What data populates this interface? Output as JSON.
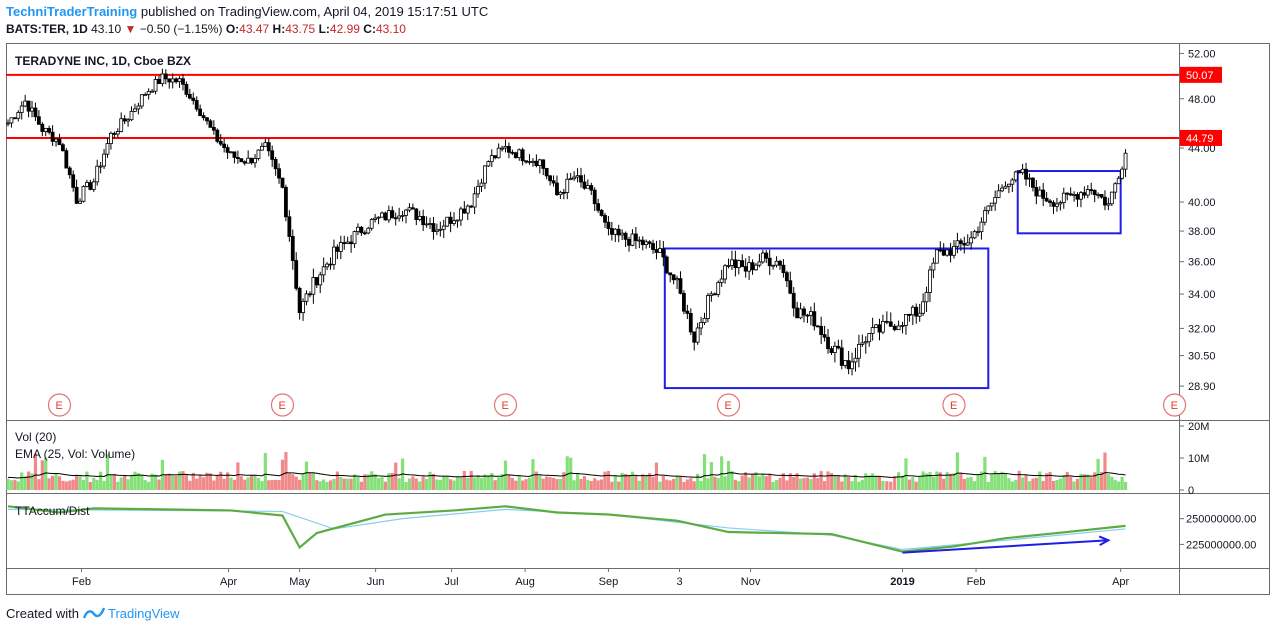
{
  "header": {
    "author": "TechniTraderTraining",
    "published": "published on TradingView.com, April 04, 2019 15:17:51 UTC",
    "symbol": "BATS:TER, 1D",
    "last": "43.10",
    "arrow": "▼",
    "change": "−0.50 (−1.15%)",
    "o_label": "O:",
    "o": "43.47",
    "h_label": "H:",
    "h": "43.75",
    "l_label": "L:",
    "l": "42.99",
    "c_label": "C:",
    "c": "43.10"
  },
  "footer": {
    "created": "Created with",
    "tv": "TradingView"
  },
  "chart_data": [
    {
      "type": "candlestick",
      "title": "TERADYNE INC, 1D, Cboe BZX",
      "y_ticks": [
        "52.00",
        "48.00",
        "44.00",
        "40.00",
        "38.00",
        "36.00",
        "34.00",
        "32.00",
        "30.50",
        "28.90"
      ],
      "ylim": [
        28.3,
        52.5
      ],
      "scale": "log",
      "horizontal_lines": [
        {
          "value": 50.07,
          "label": "50.07",
          "color": "#ff0000"
        },
        {
          "value": 44.79,
          "label": "44.79",
          "color": "#ff0000"
        }
      ],
      "boxes": [
        {
          "from": "2018-09-27",
          "to": "2019-02-06",
          "low": 28.8,
          "high": 36.85,
          "color": "#1e1ee6"
        },
        {
          "from": "2019-02-18",
          "to": "2019-04-01",
          "low": 37.85,
          "high": 42.25,
          "color": "#1e1ee6"
        }
      ],
      "earnings_markers": [
        "E",
        "E",
        "E",
        "E",
        "E",
        "E"
      ],
      "x_ticks": [
        "Feb",
        "Apr",
        "May",
        "Jun",
        "Jul",
        "Aug",
        "Sep",
        "3",
        "Nov",
        "2019",
        "Feb",
        "Apr"
      ],
      "series": [
        {
          "dates": [
            "2018-01-02",
            "2018-01-09",
            "2018-01-16",
            "2018-01-23",
            "2018-01-30",
            "2018-02-06",
            "2018-02-13",
            "2018-02-20",
            "2018-02-27",
            "2018-03-06",
            "2018-03-13",
            "2018-03-20",
            "2018-03-27",
            "2018-04-03",
            "2018-04-10",
            "2018-04-17",
            "2018-04-24",
            "2018-05-01",
            "2018-05-08",
            "2018-05-15",
            "2018-05-22",
            "2018-05-29",
            "2018-06-05",
            "2018-06-12",
            "2018-06-19",
            "2018-06-26",
            "2018-07-03",
            "2018-07-10",
            "2018-07-17",
            "2018-07-24",
            "2018-07-31",
            "2018-08-07",
            "2018-08-14",
            "2018-08-21",
            "2018-08-28",
            "2018-09-04",
            "2018-09-11",
            "2018-09-18",
            "2018-09-25",
            "2018-10-02",
            "2018-10-09",
            "2018-10-16",
            "2018-10-23",
            "2018-10-30",
            "2018-11-06",
            "2018-11-13",
            "2018-11-20",
            "2018-11-27",
            "2018-12-04",
            "2018-12-11",
            "2018-12-18",
            "2018-12-25",
            "2019-01-02",
            "2019-01-09",
            "2019-01-16",
            "2019-01-23",
            "2019-01-30",
            "2019-02-06",
            "2019-02-13",
            "2019-02-20",
            "2019-02-27",
            "2019-03-06",
            "2019-03-13",
            "2019-03-20",
            "2019-03-27",
            "2019-04-03"
          ],
          "close": [
            46.0,
            47.8,
            45.5,
            44.5,
            40.2,
            41.5,
            45.0,
            46.5,
            48.5,
            49.8,
            49.5,
            47.5,
            45.0,
            43.4,
            43.0,
            44.0,
            41.0,
            33.0,
            35.0,
            36.5,
            37.5,
            38.5,
            39.0,
            39.5,
            39.0,
            38.2,
            39.0,
            40.0,
            43.0,
            44.0,
            43.4,
            43.0,
            40.5,
            41.8,
            40.5,
            37.8,
            37.5,
            37.2,
            36.5,
            34.5,
            31.5,
            34.0,
            36.0,
            35.5,
            36.2,
            36.0,
            33.0,
            32.5,
            31.0,
            30.0,
            31.5,
            32.0,
            32.5,
            33.0,
            36.5,
            36.8,
            37.5,
            39.5,
            41.5,
            42.0,
            40.5,
            40.0,
            40.5,
            41.0,
            39.8,
            43.6
          ]
        }
      ]
    },
    {
      "type": "bar",
      "title": "Vol (20)",
      "subtitle": "EMA (25, Vol: Volume)",
      "y_ticks": [
        "20M",
        "10M",
        "0"
      ],
      "ylim": [
        0,
        20000000
      ],
      "notes": "daily volume bars, green up / red down, with EMA line"
    },
    {
      "type": "line",
      "title": "TTAccum/Dist",
      "y_ticks": [
        "250000000.00",
        "225000000.00"
      ],
      "ylim": [
        204000000,
        272000000
      ],
      "series": [
        {
          "color": "#5cab43",
          "dates": [
            "2018-01-02",
            "2018-01-23",
            "2018-02-06",
            "2018-03-06",
            "2018-04-03",
            "2018-04-24",
            "2018-05-01",
            "2018-05-08",
            "2018-06-05",
            "2018-07-03",
            "2018-07-24",
            "2018-08-14",
            "2018-09-04",
            "2018-10-02",
            "2018-10-23",
            "2018-11-13",
            "2018-12-04",
            "2019-01-02",
            "2019-01-23",
            "2019-02-13",
            "2019-03-06",
            "2019-04-03"
          ],
          "values": [
            262000000,
            256000000,
            260000000,
            259000000,
            258000000,
            253000000,
            222000000,
            236000000,
            254000000,
            258000000,
            262000000,
            256000000,
            254000000,
            248000000,
            237000000,
            236000000,
            235000000,
            218000000,
            223000000,
            231000000,
            236000000,
            243000000
          ]
        },
        {
          "color": "#87ceeb",
          "dates": [
            "2018-01-02",
            "2018-03-06",
            "2018-04-24",
            "2018-05-15",
            "2018-06-12",
            "2018-07-24",
            "2018-09-04",
            "2018-10-23",
            "2018-12-04",
            "2019-01-02",
            "2019-02-13",
            "2019-04-03"
          ],
          "values": [
            259000000,
            258000000,
            257000000,
            240000000,
            250000000,
            259000000,
            254000000,
            241000000,
            234000000,
            220000000,
            229000000,
            240000000
          ]
        }
      ],
      "trend_arrow": {
        "from": [
          "2019-01-02",
          217000000
        ],
        "to": [
          "2019-03-27",
          229000000
        ],
        "color": "#1e1ee6"
      }
    }
  ]
}
